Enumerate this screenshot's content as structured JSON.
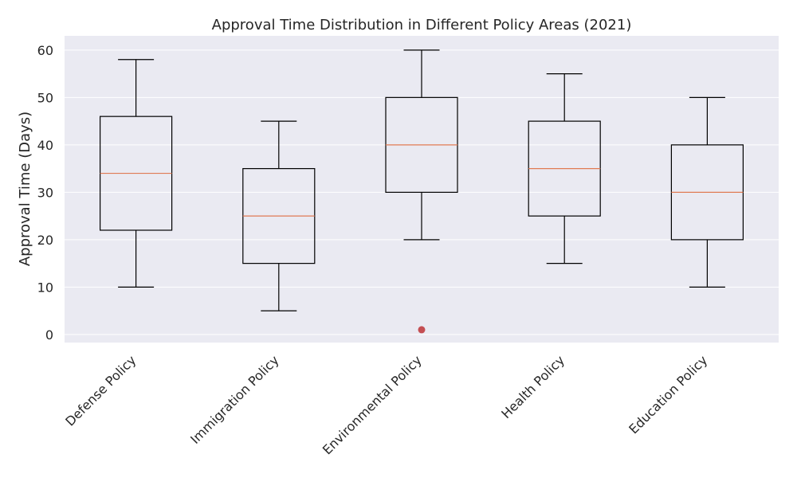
{
  "chart_data": {
    "type": "box",
    "title": "Approval Time Distribution in Different Policy Areas (2021)",
    "xlabel": "",
    "ylabel": "Approval Time (Days)",
    "ylim": [
      -1.7,
      63
    ],
    "yticks": [
      0,
      10,
      20,
      30,
      40,
      50,
      60
    ],
    "grid": true,
    "categories": [
      "Defense Policy",
      "Immigration Policy",
      "Environmental Policy",
      "Health Policy",
      "Education Policy"
    ],
    "boxes": [
      {
        "category": "Defense Policy",
        "whisker_low": 10,
        "q1": 22,
        "median": 34,
        "q3": 46,
        "whisker_high": 58,
        "outliers": []
      },
      {
        "category": "Immigration Policy",
        "whisker_low": 5,
        "q1": 15,
        "median": 25,
        "q3": 35,
        "whisker_high": 45,
        "outliers": []
      },
      {
        "category": "Environmental Policy",
        "whisker_low": 20,
        "q1": 30,
        "median": 40,
        "q3": 50,
        "whisker_high": 60,
        "outliers": [
          1
        ]
      },
      {
        "category": "Health Policy",
        "whisker_low": 15,
        "q1": 25,
        "median": 35,
        "q3": 45,
        "whisker_high": 55,
        "outliers": []
      },
      {
        "category": "Education Policy",
        "whisker_low": 10,
        "q1": 20,
        "median": 30,
        "q3": 40,
        "whisker_high": 50,
        "outliers": []
      }
    ],
    "colors": {
      "plot_background": "#eaeaf2",
      "grid": "#ffffff",
      "box_edge": "#000000",
      "median": "#e07b54",
      "outlier": "#c44e52"
    }
  }
}
